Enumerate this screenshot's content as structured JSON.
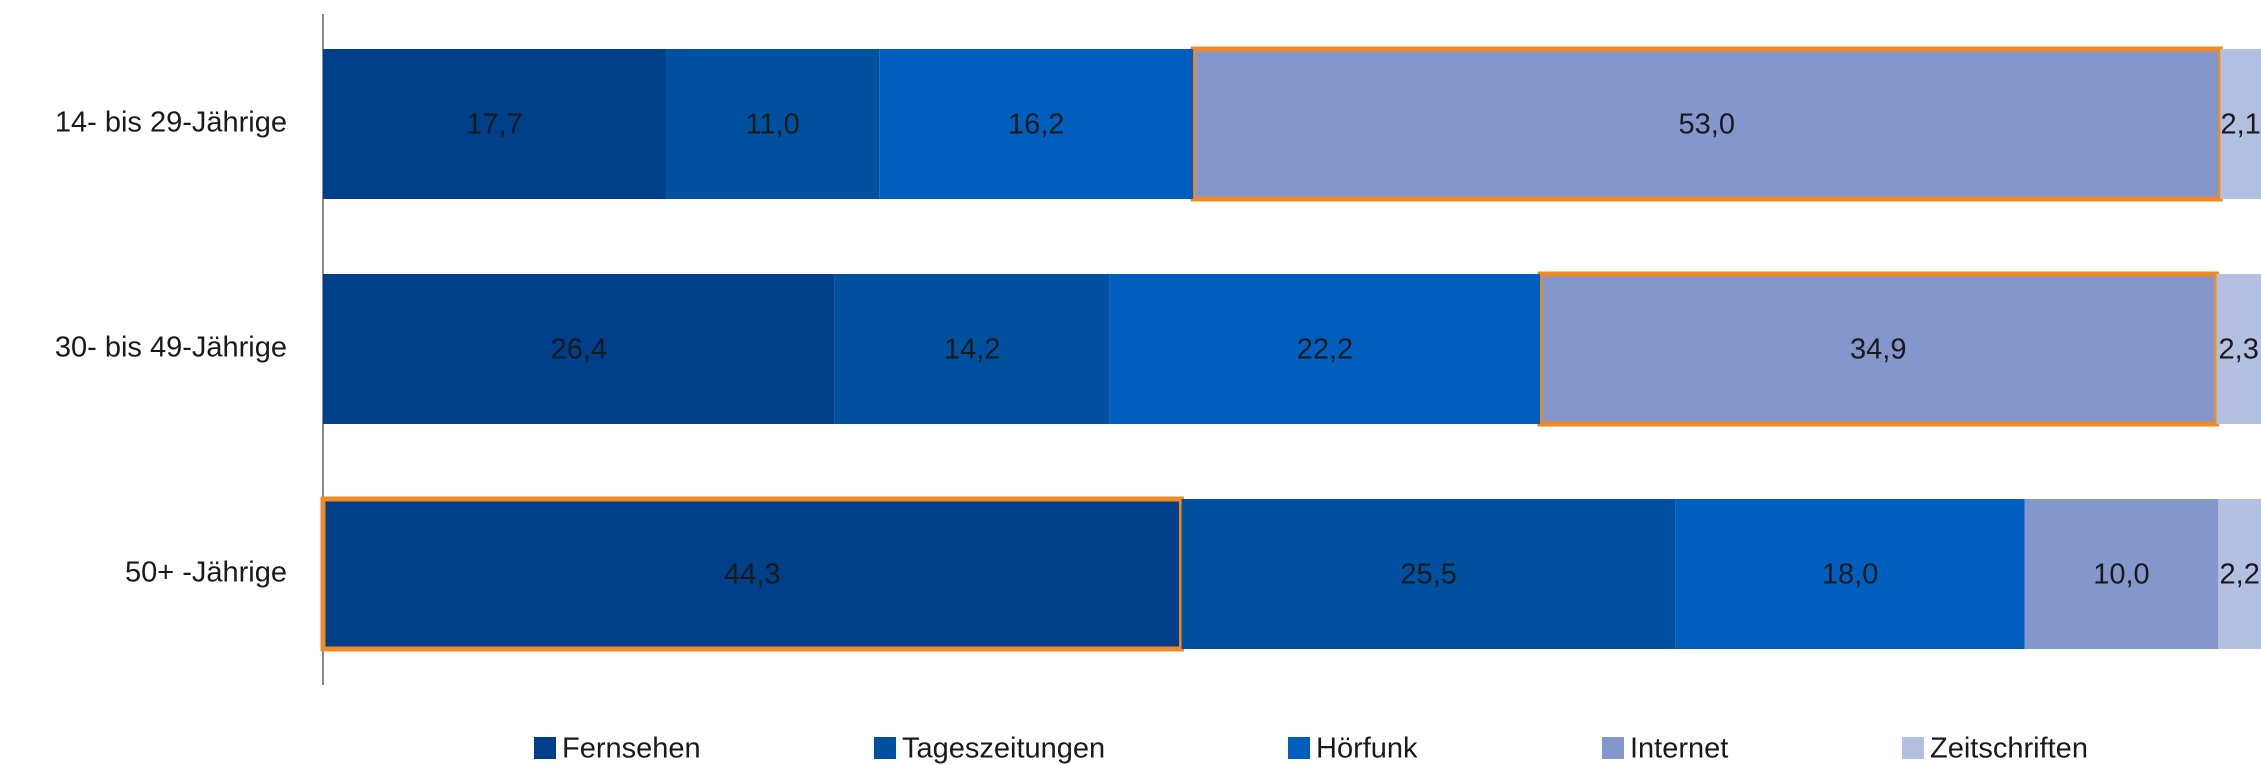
{
  "chart_data": {
    "type": "stacked_barh",
    "categories": [
      "14- bis 29-Jährige",
      "30- bis 49-Jährige",
      "50+ -Jährige"
    ],
    "series": [
      {
        "name": "Fernsehen",
        "color": "#00408a",
        "values": [
          17.7,
          26.4,
          44.3
        ],
        "value_labels": [
          "17,7",
          "26,4",
          "44,3"
        ]
      },
      {
        "name": "Tageszeitungen",
        "color": "#0050a0",
        "values": [
          11.0,
          14.2,
          25.5
        ],
        "value_labels": [
          "11,0",
          "14,2",
          "25,5"
        ]
      },
      {
        "name": "Hörfunk",
        "color": "#005fbe",
        "values": [
          16.2,
          22.2,
          18.0
        ],
        "value_labels": [
          "16,2",
          "22,2",
          "18,0"
        ]
      },
      {
        "name": "Internet",
        "color": "#8497cc",
        "values": [
          53.0,
          34.9,
          10.0
        ],
        "value_labels": [
          "53,0",
          "34,9",
          "10,0"
        ]
      },
      {
        "name": "Zeitschriften",
        "color": "#b4c0e2",
        "values": [
          2.1,
          2.3,
          2.2
        ],
        "value_labels": [
          "2,1",
          "2,3",
          "2,2"
        ]
      }
    ],
    "xlim": [
      0,
      100
    ],
    "highlights": [
      {
        "series": 3,
        "category": 0
      },
      {
        "series": 3,
        "category": 1
      },
      {
        "series": 0,
        "category": 2
      }
    ],
    "highlight_color": "#f08a24",
    "legend": "bottom"
  }
}
